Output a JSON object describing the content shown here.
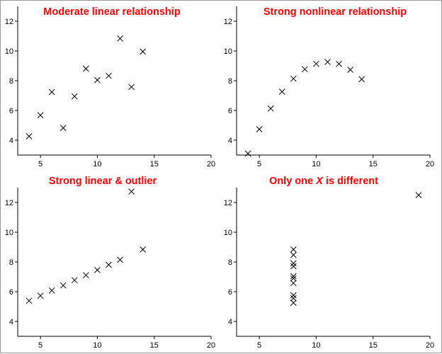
{
  "colors": {
    "title": "#ff0000",
    "marker": "#000000",
    "axis": "#000000",
    "background": "#ffffff"
  },
  "chart_data": [
    {
      "type": "scatter",
      "title": "Moderate linear relationship",
      "xlabel": "",
      "ylabel": "",
      "xlim": [
        3,
        20
      ],
      "ylim": [
        3,
        13
      ],
      "xticks": [
        5,
        10,
        15,
        20
      ],
      "yticks": [
        4,
        6,
        8,
        10,
        12
      ],
      "grid": false,
      "marker": "x",
      "points": [
        {
          "x": 4,
          "y": 4.26
        },
        {
          "x": 5,
          "y": 5.68
        },
        {
          "x": 6,
          "y": 7.24
        },
        {
          "x": 7,
          "y": 4.82
        },
        {
          "x": 8,
          "y": 6.95
        },
        {
          "x": 9,
          "y": 8.81
        },
        {
          "x": 10,
          "y": 8.04
        },
        {
          "x": 11,
          "y": 8.33
        },
        {
          "x": 12,
          "y": 10.84
        },
        {
          "x": 13,
          "y": 7.58
        },
        {
          "x": 14,
          "y": 9.96
        }
      ]
    },
    {
      "type": "scatter",
      "title": "Strong nonlinear relationship",
      "xlabel": "",
      "ylabel": "",
      "xlim": [
        3,
        20
      ],
      "ylim": [
        3,
        13
      ],
      "xticks": [
        5,
        10,
        15,
        20
      ],
      "yticks": [
        4,
        6,
        8,
        10,
        12
      ],
      "grid": false,
      "marker": "x",
      "points": [
        {
          "x": 4,
          "y": 3.1
        },
        {
          "x": 5,
          "y": 4.74
        },
        {
          "x": 6,
          "y": 6.13
        },
        {
          "x": 7,
          "y": 7.26
        },
        {
          "x": 8,
          "y": 8.14
        },
        {
          "x": 9,
          "y": 8.77
        },
        {
          "x": 10,
          "y": 9.14
        },
        {
          "x": 11,
          "y": 9.26
        },
        {
          "x": 12,
          "y": 9.13
        },
        {
          "x": 13,
          "y": 8.74
        },
        {
          "x": 14,
          "y": 8.1
        }
      ]
    },
    {
      "type": "scatter",
      "title": "Strong linear & outlier",
      "xlabel": "",
      "ylabel": "",
      "xlim": [
        3,
        20
      ],
      "ylim": [
        3,
        13
      ],
      "xticks": [
        5,
        10,
        15,
        20
      ],
      "yticks": [
        4,
        6,
        8,
        10,
        12
      ],
      "grid": false,
      "marker": "x",
      "points": [
        {
          "x": 4,
          "y": 5.39
        },
        {
          "x": 5,
          "y": 5.73
        },
        {
          "x": 6,
          "y": 6.08
        },
        {
          "x": 7,
          "y": 6.42
        },
        {
          "x": 8,
          "y": 6.77
        },
        {
          "x": 9,
          "y": 7.11
        },
        {
          "x": 10,
          "y": 7.46
        },
        {
          "x": 11,
          "y": 7.81
        },
        {
          "x": 12,
          "y": 8.15
        },
        {
          "x": 13,
          "y": 12.74
        },
        {
          "x": 14,
          "y": 8.84
        }
      ]
    },
    {
      "type": "scatter",
      "title_parts": [
        "Only one ",
        "X",
        " is different"
      ],
      "xlabel": "",
      "ylabel": "",
      "xlim": [
        3,
        20
      ],
      "ylim": [
        3,
        13
      ],
      "xticks": [
        5,
        10,
        15,
        20
      ],
      "yticks": [
        4,
        6,
        8,
        10,
        12
      ],
      "grid": false,
      "marker": "x",
      "points": [
        {
          "x": 8,
          "y": 6.58
        },
        {
          "x": 8,
          "y": 5.76
        },
        {
          "x": 8,
          "y": 7.71
        },
        {
          "x": 8,
          "y": 8.84
        },
        {
          "x": 8,
          "y": 8.47
        },
        {
          "x": 8,
          "y": 7.04
        },
        {
          "x": 8,
          "y": 5.25
        },
        {
          "x": 19,
          "y": 12.5
        },
        {
          "x": 8,
          "y": 5.56
        },
        {
          "x": 8,
          "y": 7.91
        },
        {
          "x": 8,
          "y": 6.89
        }
      ]
    }
  ]
}
